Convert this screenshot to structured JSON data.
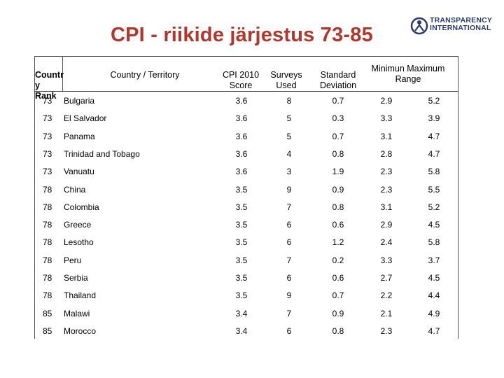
{
  "title": "CPI -  riikide järjestus 73-85",
  "logo": {
    "line1": "TRANSPARENCY",
    "line2": "INTERNATIONAL",
    "icon": "globe-person-icon"
  },
  "headers": {
    "rank_line1": "Countr",
    "rank_line2": "y Rank",
    "country": "Country / Territory",
    "cpi_line1": "CPI 2010",
    "cpi_line2": "Score",
    "surveys_line1": "Surveys",
    "surveys_line2": "Used",
    "std_line1": "Standard",
    "std_line2": "Deviation",
    "range_line1": "Minimun Maximum",
    "range_line2": "Range"
  },
  "rows": [
    {
      "rank": "73",
      "country": "Bulgaria",
      "cpi": "3.6",
      "surveys": "8",
      "std": "0.7",
      "min": "2.9",
      "max": "5.2"
    },
    {
      "rank": "73",
      "country": "El Salvador",
      "cpi": "3.6",
      "surveys": "5",
      "std": "0.3",
      "min": "3.3",
      "max": "3.9"
    },
    {
      "rank": "73",
      "country": "Panama",
      "cpi": "3.6",
      "surveys": "5",
      "std": "0.7",
      "min": "3.1",
      "max": "4.7"
    },
    {
      "rank": "73",
      "country": "Trinidad and Tobago",
      "cpi": "3.6",
      "surveys": "4",
      "std": "0.8",
      "min": "2.8",
      "max": "4.7"
    },
    {
      "rank": "73",
      "country": "Vanuatu",
      "cpi": "3.6",
      "surveys": "3",
      "std": "1.9",
      "min": "2.3",
      "max": "5.8"
    },
    {
      "rank": "78",
      "country": "China",
      "cpi": "3.5",
      "surveys": "9",
      "std": "0.9",
      "min": "2.3",
      "max": "5.5"
    },
    {
      "rank": "78",
      "country": "Colombia",
      "cpi": "3.5",
      "surveys": "7",
      "std": "0.8",
      "min": "3.1",
      "max": "5.2"
    },
    {
      "rank": "78",
      "country": "Greece",
      "cpi": "3.5",
      "surveys": "6",
      "std": "0.6",
      "min": "2.9",
      "max": "4.5"
    },
    {
      "rank": "78",
      "country": "Lesotho",
      "cpi": "3.5",
      "surveys": "6",
      "std": "1.2",
      "min": "2.4",
      "max": "5.8"
    },
    {
      "rank": "78",
      "country": "Peru",
      "cpi": "3.5",
      "surveys": "7",
      "std": "0.2",
      "min": "3.3",
      "max": "3.7"
    },
    {
      "rank": "78",
      "country": "Serbia",
      "cpi": "3.5",
      "surveys": "6",
      "std": "0.6",
      "min": "2.7",
      "max": "4.5"
    },
    {
      "rank": "78",
      "country": "Thailand",
      "cpi": "3.5",
      "surveys": "9",
      "std": "0.7",
      "min": "2.2",
      "max": "4.4"
    },
    {
      "rank": "85",
      "country": "Malawi",
      "cpi": "3.4",
      "surveys": "7",
      "std": "0.9",
      "min": "2.1",
      "max": "4.9"
    },
    {
      "rank": "85",
      "country": "Morocco",
      "cpi": "3.4",
      "surveys": "6",
      "std": "0.8",
      "min": "2.3",
      "max": "4.7"
    }
  ]
}
